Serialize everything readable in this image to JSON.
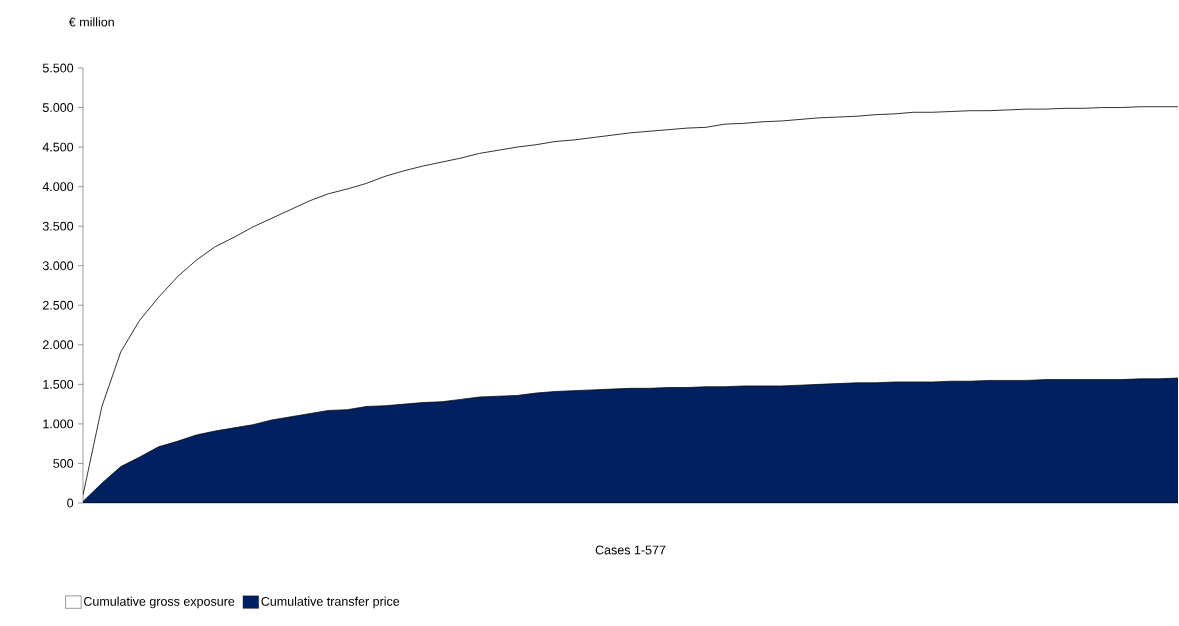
{
  "chart_data": {
    "type": "area",
    "xlabel": "Cases 1-577",
    "ylabel": "€ million",
    "categories": [
      null,
      null,
      null,
      null,
      null,
      null,
      null,
      null,
      null,
      null,
      null,
      null,
      null,
      null,
      null,
      null,
      null,
      null,
      null,
      null,
      null,
      null,
      null,
      null,
      null,
      null,
      null,
      null,
      null,
      null,
      null,
      null,
      null,
      null,
      null,
      null,
      null,
      null,
      null,
      null,
      null,
      null,
      null,
      null,
      null,
      null,
      null,
      null,
      null,
      null,
      null,
      null,
      null,
      null,
      null,
      null,
      null,
      null,
      null
    ],
    "series": [
      {
        "name": "Cumulative gross exposure",
        "type": "line",
        "color": "#000000",
        "values": [
          100,
          1220,
          1910,
          2310,
          2600,
          2860,
          3070,
          3240,
          3360,
          3490,
          3600,
          3710,
          3820,
          3910,
          3970,
          4040,
          4130,
          4200,
          4260,
          4310,
          4360,
          4420,
          4460,
          4500,
          4530,
          4570,
          4590,
          4620,
          4650,
          4680,
          4700,
          4720,
          4740,
          4750,
          4790,
          4800,
          4820,
          4830,
          4850,
          4870,
          4880,
          4890,
          4910,
          4920,
          4940,
          4940,
          4950,
          4960,
          4960,
          4970,
          4980,
          4980,
          4990,
          4990,
          5000,
          5000,
          5010,
          5010,
          5010
        ]
      },
      {
        "name": "Cumulative transfer price",
        "color": "#002060",
        "values": [
          20,
          250,
          460,
          580,
          710,
          780,
          860,
          910,
          950,
          990,
          1050,
          1090,
          1130,
          1170,
          1180,
          1220,
          1230,
          1250,
          1270,
          1280,
          1310,
          1340,
          1350,
          1360,
          1390,
          1410,
          1420,
          1430,
          1440,
          1450,
          1450,
          1460,
          1460,
          1470,
          1470,
          1480,
          1480,
          1480,
          1490,
          1500,
          1510,
          1520,
          1520,
          1530,
          1530,
          1530,
          1540,
          1540,
          1550,
          1550,
          1550,
          1560,
          1560,
          1560,
          1560,
          1560,
          1570,
          1570,
          1580
        ]
      }
    ],
    "ylim": [
      0,
      5500
    ],
    "yticks": [
      0,
      500,
      {
        "value": 1000,
        "label": "1.000"
      },
      {
        "value": 1500,
        "label": "1.500"
      },
      {
        "value": 2000,
        "label": "2.000"
      },
      {
        "value": 2500,
        "label": "2.500"
      },
      {
        "value": 3000,
        "label": "3.000"
      },
      {
        "value": 3500,
        "label": "3.500"
      },
      {
        "value": 4000,
        "label": "4.000"
      },
      {
        "value": 4500,
        "label": "4.500"
      },
      {
        "value": 5000,
        "label": "5.000"
      },
      {
        "value": 5500,
        "label": "5.500"
      }
    ],
    "legend": "bottom left"
  }
}
